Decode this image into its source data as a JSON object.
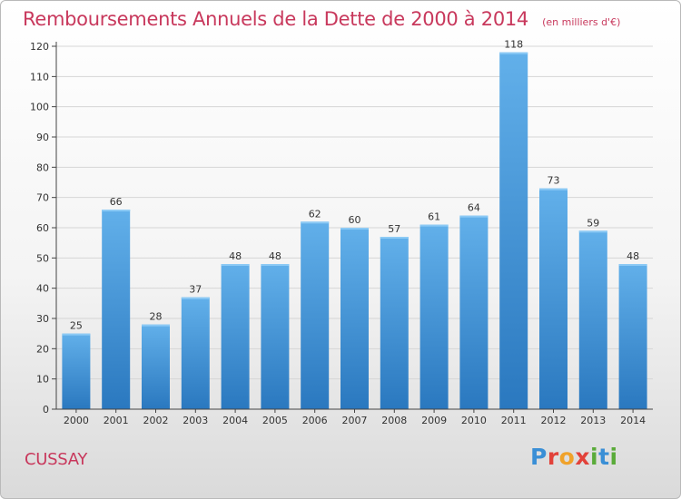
{
  "header": {
    "title": "Remboursements Annuels de la Dette de 2000 à 2014",
    "unit": "(en milliers d'€)"
  },
  "footer": {
    "city": "CUSSAY",
    "logo_letters": [
      "P",
      "r",
      "o",
      "x",
      "i",
      "t",
      "i"
    ]
  },
  "colors": {
    "title": "#c8385c",
    "bar_light": "#62b0ea",
    "bar_dark": "#2a78bf"
  },
  "chart_data": {
    "type": "bar",
    "title": "Remboursements Annuels de la Dette de 2000 à 2014",
    "xlabel": "",
    "ylabel": "",
    "categories": [
      "2000",
      "2001",
      "2002",
      "2003",
      "2004",
      "2005",
      "2006",
      "2007",
      "2008",
      "2009",
      "2010",
      "2011",
      "2012",
      "2013",
      "2014"
    ],
    "values": [
      25,
      66,
      28,
      37,
      48,
      48,
      62,
      60,
      57,
      61,
      64,
      118,
      73,
      59,
      48
    ],
    "ylim": [
      0,
      120
    ],
    "yticks": [
      0,
      10,
      20,
      30,
      40,
      50,
      60,
      70,
      80,
      90,
      100,
      110,
      120
    ],
    "grid": true,
    "legend": "none",
    "data_labels": true
  }
}
